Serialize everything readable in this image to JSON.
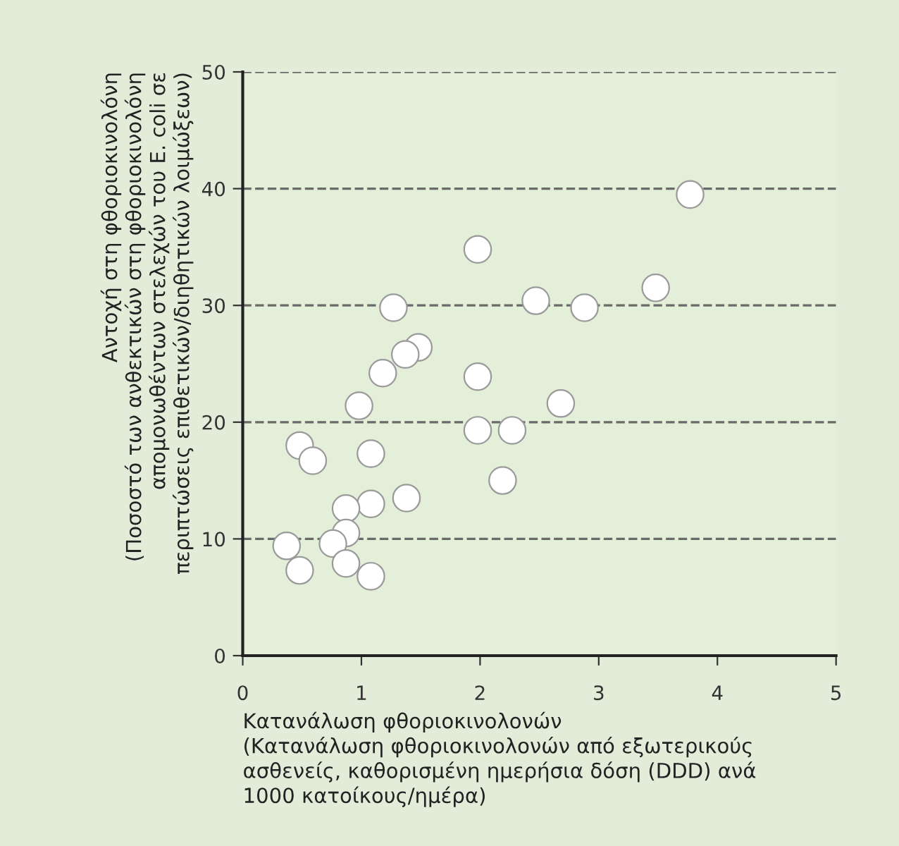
{
  "chart_data": {
    "type": "scatter",
    "xlabel": "Κατανάλωση φθοριοκινολονών\n(Κατανάλωση φθοριοκινολονών από εξωτερικούς\nασθενείς, καθορισμένη ημερήσια δόση (DDD) ανά\n1000 κατοίκους/ημέρα)",
    "ylabel": "Αντοχή στη φθοριοκινολόνη\n(Ποσοστό των ανθεκτικών στη φθοριοκινολόνη\nαπομονωθέντων στελεχών του E. coli σε\nπεριπτώσεις επιθετικών/διηθητικών λοιμώξεων)",
    "x": [
      3.77,
      1.98,
      3.48,
      2.47,
      2.88,
      1.27,
      1.48,
      1.37,
      1.18,
      1.98,
      2.68,
      0.98,
      1.98,
      2.27,
      0.48,
      0.59,
      1.08,
      2.19,
      1.38,
      1.08,
      0.87,
      0.87,
      0.76,
      0.37,
      0.87,
      0.48,
      1.08
    ],
    "values": [
      39.5,
      34.8,
      31.5,
      30.4,
      29.8,
      29.8,
      26.4,
      25.8,
      24.2,
      23.9,
      21.6,
      21.4,
      19.3,
      19.3,
      18.0,
      16.7,
      17.3,
      15.0,
      13.5,
      13.0,
      12.6,
      10.5,
      9.6,
      9.4,
      7.9,
      7.3,
      6.8
    ],
    "color": "#ffffff",
    "marker": "circle",
    "xlim": [
      0,
      5
    ],
    "xticks": [
      0,
      1,
      2,
      3,
      4,
      5
    ],
    "ylim": [
      0,
      50
    ],
    "yticks": [
      0,
      10,
      20,
      30,
      40,
      50
    ],
    "grid": "y",
    "line_style": "dashed"
  }
}
